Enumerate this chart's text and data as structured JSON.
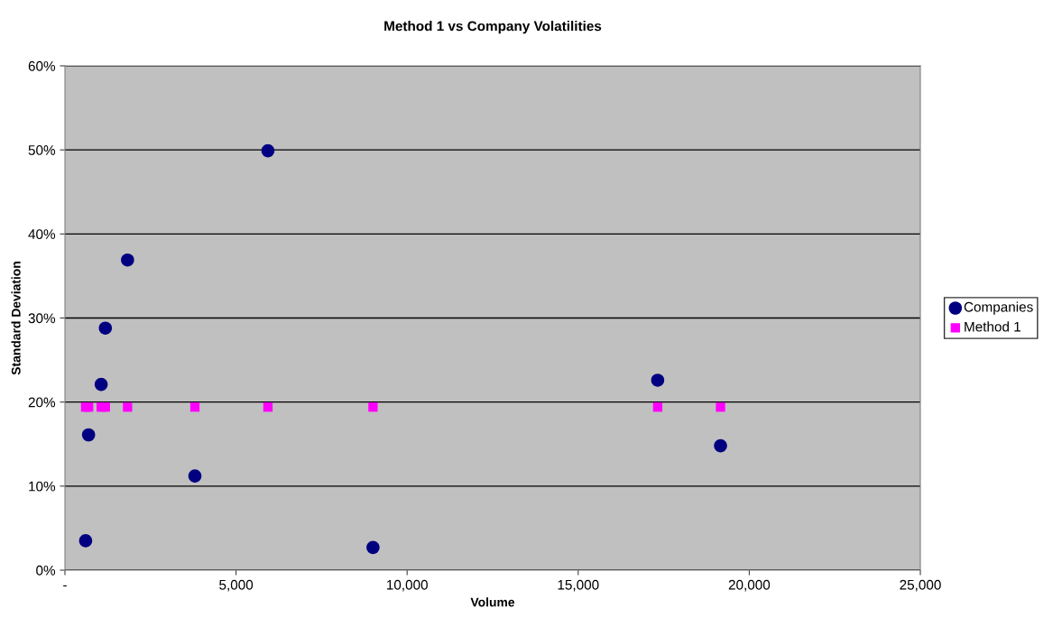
{
  "chart_data": {
    "type": "scatter",
    "title": "Method 1 vs Company Volatilities",
    "xlabel": "Volume",
    "ylabel": "Standard Deviation",
    "x": [
      604,
      690,
      1058,
      1181,
      1829,
      3798,
      5932,
      9003,
      17323,
      19160
    ],
    "series": [
      {
        "name": "Companies",
        "color": "#000080",
        "marker": "circle",
        "values": [
          3.5,
          16.1,
          22.1,
          28.8,
          36.9,
          11.2,
          49.9,
          2.7,
          22.6,
          14.8
        ]
      },
      {
        "name": "Method 1",
        "color": "#ff00ff",
        "marker": "square",
        "values": [
          19.4,
          19.4,
          19.4,
          19.4,
          19.4,
          19.4,
          19.4,
          19.4,
          19.4,
          19.4
        ]
      }
    ],
    "xlim": [
      0,
      25000
    ],
    "ylim": [
      0,
      60
    ],
    "xticks": [
      {
        "value": 0,
        "label": "-"
      },
      {
        "value": 5000,
        "label": "5,000"
      },
      {
        "value": 10000,
        "label": "10,000"
      },
      {
        "value": 15000,
        "label": "15,000"
      },
      {
        "value": 20000,
        "label": "20,000"
      },
      {
        "value": 25000,
        "label": "25,000"
      }
    ],
    "yticks": [
      {
        "value": 0,
        "label": "0%"
      },
      {
        "value": 10,
        "label": "10%"
      },
      {
        "value": 20,
        "label": "20%"
      },
      {
        "value": 30,
        "label": "30%"
      },
      {
        "value": 40,
        "label": "40%"
      },
      {
        "value": 50,
        "label": "50%"
      },
      {
        "value": 60,
        "label": "60%"
      }
    ],
    "grid": "y",
    "legend": "right"
  }
}
